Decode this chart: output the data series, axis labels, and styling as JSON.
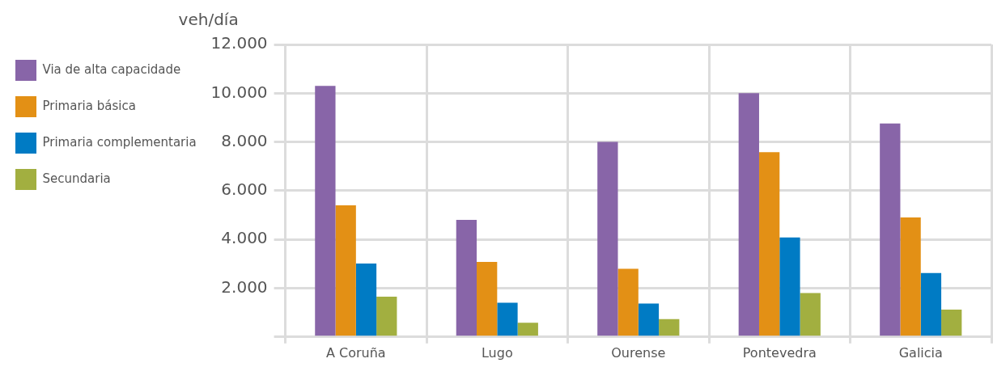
{
  "chart_data": {
    "type": "bar",
    "ylabel": "veh/día",
    "categories": [
      "A Coruña",
      "Lugo",
      "Ourense",
      "Pontevedra",
      "Galicia"
    ],
    "series": [
      {
        "name": "Via de alta capacidade",
        "color": "#8865a8",
        "values": [
          10300,
          4800,
          8000,
          10000,
          8760
        ]
      },
      {
        "name": "Primaria básica",
        "color": "#e39015",
        "values": [
          5400,
          3080,
          2800,
          7580,
          4900
        ]
      },
      {
        "name": "Primaria complementaria",
        "color": "#007bc4",
        "values": [
          3010,
          1400,
          1370,
          4080,
          2620
        ]
      },
      {
        "name": "Secundaria",
        "color": "#a2af40",
        "values": [
          1650,
          580,
          730,
          1800,
          1120
        ]
      }
    ],
    "ylim": [
      0,
      12000
    ],
    "yticks": [
      {
        "value": 0,
        "label": null
      },
      {
        "value": 2000,
        "label": "2.000"
      },
      {
        "value": 4000,
        "label": "4.000"
      },
      {
        "value": 6000,
        "label": "6.000"
      },
      {
        "value": 8000,
        "label": "8.000"
      },
      {
        "value": 10000,
        "label": "10.000"
      },
      {
        "value": 12000,
        "label": "12.000"
      }
    ],
    "grid": true,
    "legend": "top left"
  }
}
